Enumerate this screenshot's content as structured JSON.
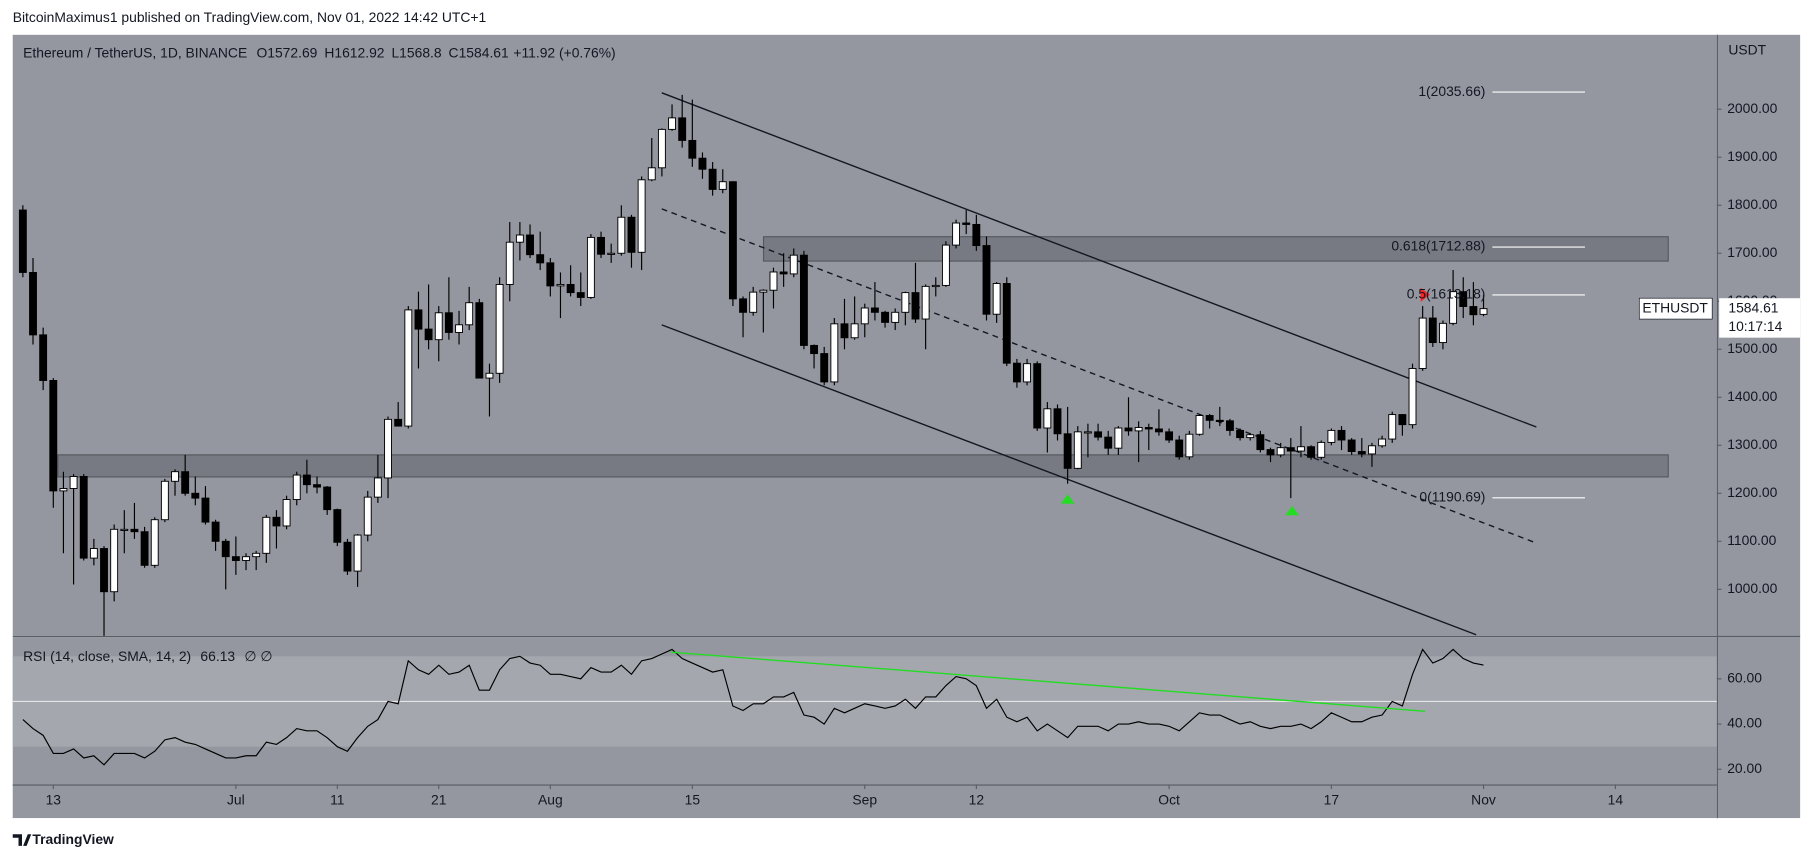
{
  "chart_data": {
    "type": "candlestick",
    "published": "BitcoinMaximus1 published on TradingView.com, Nov 01, 2022 14:42 UTC+1",
    "title": "Ethereum / TetherUS, 1D, BINANCE",
    "legend_keys": [
      "O",
      "H",
      "L",
      "C"
    ],
    "change": "+11.92 (+0.76%)",
    "y_unit": "USDT",
    "symbol": "ETHUSDT",
    "countdown": "10:17:14",
    "footer": "TradingView",
    "colors": {
      "background": "#94979f",
      "up": "#ffffff",
      "down": "#000000",
      "rsi": "#000000"
    },
    "xlim": [
      "2022-06-09",
      "2022-11-24"
    ],
    "xticks": [
      {
        "value": "2022-06-13",
        "label": "13"
      },
      {
        "value": "2022-07-01",
        "label": "Jul"
      },
      {
        "value": "2022-07-11",
        "label": "11"
      },
      {
        "value": "2022-07-21",
        "label": "21"
      },
      {
        "value": "2022-08-01",
        "label": "Aug"
      },
      {
        "value": "2022-08-15",
        "label": "15"
      },
      {
        "value": "2022-09-01",
        "label": "Sep"
      },
      {
        "value": "2022-09-12",
        "label": "12"
      },
      {
        "value": "2022-10-01",
        "label": "Oct"
      },
      {
        "value": "2022-10-17",
        "label": "17"
      },
      {
        "value": "2022-11-01",
        "label": "Nov"
      },
      {
        "value": "2022-11-14",
        "label": "14"
      }
    ],
    "ylim": [
      903,
      2155
    ],
    "yticks": [
      {
        "value": 1000,
        "label": "1000.00"
      },
      {
        "value": 1100,
        "label": "1100.00"
      },
      {
        "value": 1200,
        "label": "1200.00"
      },
      {
        "value": 1300,
        "label": "1300.00"
      },
      {
        "value": 1400,
        "label": "1400.00"
      },
      {
        "value": 1500,
        "label": "1500.00"
      },
      {
        "value": 1600,
        "label": "1600.00"
      },
      {
        "value": 1700,
        "label": "1700.00"
      },
      {
        "value": 1800,
        "label": "1800.00"
      },
      {
        "value": 1900,
        "label": "1900.00"
      },
      {
        "value": 2000,
        "label": "2000.00"
      }
    ],
    "fib": [
      {
        "label": "1(2035.66)",
        "value": 2035.66
      },
      {
        "label": "0.618(1712.88)",
        "value": 1712.88
      },
      {
        "label": "0.5(1613.18)",
        "value": 1613.18
      },
      {
        "label": "0(1190.69)",
        "value": 1190.69
      }
    ],
    "x": [
      "2022-06-10",
      "2022-06-11",
      "2022-06-12",
      "2022-06-13",
      "2022-06-14",
      "2022-06-15",
      "2022-06-16",
      "2022-06-17",
      "2022-06-18",
      "2022-06-19",
      "2022-06-20",
      "2022-06-21",
      "2022-06-22",
      "2022-06-23",
      "2022-06-24",
      "2022-06-25",
      "2022-06-26",
      "2022-06-27",
      "2022-06-28",
      "2022-06-29",
      "2022-06-30",
      "2022-07-01",
      "2022-07-02",
      "2022-07-03",
      "2022-07-04",
      "2022-07-05",
      "2022-07-06",
      "2022-07-07",
      "2022-07-08",
      "2022-07-09",
      "2022-07-10",
      "2022-07-11",
      "2022-07-12",
      "2022-07-13",
      "2022-07-14",
      "2022-07-15",
      "2022-07-16",
      "2022-07-17",
      "2022-07-18",
      "2022-07-19",
      "2022-07-20",
      "2022-07-21",
      "2022-07-22",
      "2022-07-23",
      "2022-07-24",
      "2022-07-25",
      "2022-07-26",
      "2022-07-27",
      "2022-07-28",
      "2022-07-29",
      "2022-07-30",
      "2022-07-31",
      "2022-08-01",
      "2022-08-02",
      "2022-08-03",
      "2022-08-04",
      "2022-08-05",
      "2022-08-06",
      "2022-08-07",
      "2022-08-08",
      "2022-08-09",
      "2022-08-10",
      "2022-08-11",
      "2022-08-12",
      "2022-08-13",
      "2022-08-14",
      "2022-08-15",
      "2022-08-16",
      "2022-08-17",
      "2022-08-18",
      "2022-08-19",
      "2022-08-20",
      "2022-08-21",
      "2022-08-22",
      "2022-08-23",
      "2022-08-24",
      "2022-08-25",
      "2022-08-26",
      "2022-08-27",
      "2022-08-28",
      "2022-08-29",
      "2022-08-30",
      "2022-08-31",
      "2022-09-01",
      "2022-09-02",
      "2022-09-03",
      "2022-09-04",
      "2022-09-05",
      "2022-09-06",
      "2022-09-07",
      "2022-09-08",
      "2022-09-09",
      "2022-09-10",
      "2022-09-11",
      "2022-09-12",
      "2022-09-13",
      "2022-09-14",
      "2022-09-15",
      "2022-09-16",
      "2022-09-17",
      "2022-09-18",
      "2022-09-19",
      "2022-09-20",
      "2022-09-21",
      "2022-09-22",
      "2022-09-23",
      "2022-09-24",
      "2022-09-25",
      "2022-09-26",
      "2022-09-27",
      "2022-09-28",
      "2022-09-29",
      "2022-09-30",
      "2022-10-01",
      "2022-10-02",
      "2022-10-03",
      "2022-10-04",
      "2022-10-05",
      "2022-10-06",
      "2022-10-07",
      "2022-10-08",
      "2022-10-09",
      "2022-10-10",
      "2022-10-11",
      "2022-10-12",
      "2022-10-13",
      "2022-10-14",
      "2022-10-15",
      "2022-10-16",
      "2022-10-17",
      "2022-10-18",
      "2022-10-19",
      "2022-10-20",
      "2022-10-21",
      "2022-10-22",
      "2022-10-23",
      "2022-10-24",
      "2022-10-25",
      "2022-10-26",
      "2022-10-27",
      "2022-10-28",
      "2022-10-29",
      "2022-10-30",
      "2022-10-31",
      "2022-11-01"
    ],
    "ohlc": [
      [
        1790,
        1800,
        1650,
        1660
      ],
      [
        1660,
        1690,
        1510,
        1530
      ],
      [
        1530,
        1545,
        1415,
        1435
      ],
      [
        1435,
        1440,
        1170,
        1205
      ],
      [
        1205,
        1245,
        1075,
        1210
      ],
      [
        1210,
        1240,
        1010,
        1235
      ],
      [
        1235,
        1240,
        1060,
        1065
      ],
      [
        1065,
        1105,
        1050,
        1085
      ],
      [
        1085,
        1090,
        880,
        995
      ],
      [
        995,
        1135,
        975,
        1125
      ],
      [
        1125,
        1165,
        1075,
        1125
      ],
      [
        1125,
        1180,
        1105,
        1120
      ],
      [
        1120,
        1130,
        1045,
        1050
      ],
      [
        1050,
        1150,
        1045,
        1145
      ],
      [
        1145,
        1230,
        1140,
        1225
      ],
      [
        1225,
        1250,
        1195,
        1245
      ],
      [
        1245,
        1280,
        1195,
        1200
      ],
      [
        1200,
        1235,
        1175,
        1190
      ],
      [
        1190,
        1215,
        1135,
        1140
      ],
      [
        1140,
        1145,
        1080,
        1100
      ],
      [
        1100,
        1105,
        1000,
        1068
      ],
      [
        1068,
        1110,
        1030,
        1060
      ],
      [
        1060,
        1075,
        1040,
        1068
      ],
      [
        1068,
        1080,
        1040,
        1075
      ],
      [
        1075,
        1155,
        1055,
        1150
      ],
      [
        1150,
        1165,
        1085,
        1132
      ],
      [
        1132,
        1195,
        1125,
        1187
      ],
      [
        1187,
        1245,
        1175,
        1238
      ],
      [
        1238,
        1270,
        1200,
        1218
      ],
      [
        1218,
        1235,
        1200,
        1213
      ],
      [
        1213,
        1215,
        1155,
        1166
      ],
      [
        1166,
        1168,
        1090,
        1098
      ],
      [
        1098,
        1105,
        1030,
        1038
      ],
      [
        1038,
        1115,
        1005,
        1113
      ],
      [
        1113,
        1205,
        1100,
        1192
      ],
      [
        1192,
        1280,
        1180,
        1232
      ],
      [
        1232,
        1360,
        1190,
        1354
      ],
      [
        1354,
        1390,
        1340,
        1340
      ],
      [
        1340,
        1590,
        1335,
        1582
      ],
      [
        1582,
        1620,
        1460,
        1542
      ],
      [
        1542,
        1635,
        1500,
        1520
      ],
      [
        1520,
        1590,
        1475,
        1576
      ],
      [
        1576,
        1650,
        1520,
        1535
      ],
      [
        1535,
        1580,
        1510,
        1551
      ],
      [
        1551,
        1630,
        1540,
        1597
      ],
      [
        1597,
        1605,
        1440,
        1440
      ],
      [
        1440,
        1470,
        1360,
        1450
      ],
      [
        1450,
        1650,
        1430,
        1635
      ],
      [
        1635,
        1765,
        1600,
        1723
      ],
      [
        1723,
        1765,
        1685,
        1738
      ],
      [
        1738,
        1760,
        1690,
        1697
      ],
      [
        1697,
        1745,
        1665,
        1680
      ],
      [
        1680,
        1690,
        1610,
        1632
      ],
      [
        1632,
        1660,
        1565,
        1635
      ],
      [
        1635,
        1675,
        1610,
        1618
      ],
      [
        1618,
        1660,
        1590,
        1608
      ],
      [
        1608,
        1740,
        1605,
        1733
      ],
      [
        1733,
        1745,
        1690,
        1698
      ],
      [
        1698,
        1720,
        1680,
        1700
      ],
      [
        1700,
        1800,
        1695,
        1775
      ],
      [
        1775,
        1780,
        1670,
        1702
      ],
      [
        1702,
        1860,
        1665,
        1853
      ],
      [
        1853,
        1940,
        1850,
        1878
      ],
      [
        1878,
        1960,
        1860,
        1958
      ],
      [
        1958,
        2010,
        1955,
        1982
      ],
      [
        1982,
        2030,
        1920,
        1935
      ],
      [
        1935,
        2020,
        1880,
        1898
      ],
      [
        1898,
        1910,
        1855,
        1875
      ],
      [
        1875,
        1890,
        1820,
        1833
      ],
      [
        1833,
        1875,
        1825,
        1849
      ],
      [
        1849,
        1850,
        1590,
        1605
      ],
      [
        1605,
        1610,
        1525,
        1577
      ],
      [
        1577,
        1630,
        1570,
        1619
      ],
      [
        1619,
        1625,
        1535,
        1623
      ],
      [
        1623,
        1670,
        1585,
        1661
      ],
      [
        1661,
        1700,
        1630,
        1657
      ],
      [
        1657,
        1710,
        1650,
        1696
      ],
      [
        1696,
        1705,
        1500,
        1508
      ],
      [
        1508,
        1510,
        1460,
        1491
      ],
      [
        1491,
        1505,
        1425,
        1432
      ],
      [
        1432,
        1565,
        1425,
        1553
      ],
      [
        1553,
        1605,
        1500,
        1524
      ],
      [
        1524,
        1610,
        1520,
        1553
      ],
      [
        1553,
        1595,
        1525,
        1586
      ],
      [
        1586,
        1640,
        1560,
        1577
      ],
      [
        1577,
        1580,
        1545,
        1556
      ],
      [
        1556,
        1585,
        1540,
        1577
      ],
      [
        1577,
        1620,
        1550,
        1618
      ],
      [
        1618,
        1680,
        1555,
        1563
      ],
      [
        1563,
        1635,
        1500,
        1631
      ],
      [
        1631,
        1650,
        1610,
        1633
      ],
      [
        1633,
        1725,
        1630,
        1717
      ],
      [
        1717,
        1770,
        1710,
        1763
      ],
      [
        1763,
        1790,
        1740,
        1760
      ],
      [
        1760,
        1780,
        1705,
        1716
      ],
      [
        1716,
        1735,
        1560,
        1573
      ],
      [
        1573,
        1640,
        1555,
        1637
      ],
      [
        1637,
        1650,
        1465,
        1471
      ],
      [
        1471,
        1480,
        1420,
        1432
      ],
      [
        1432,
        1480,
        1425,
        1470
      ],
      [
        1470,
        1475,
        1330,
        1336
      ],
      [
        1336,
        1390,
        1285,
        1376
      ],
      [
        1376,
        1385,
        1310,
        1324
      ],
      [
        1324,
        1380,
        1220,
        1252
      ],
      [
        1252,
        1340,
        1250,
        1328
      ],
      [
        1328,
        1345,
        1275,
        1328
      ],
      [
        1328,
        1345,
        1310,
        1317
      ],
      [
        1317,
        1330,
        1280,
        1294
      ],
      [
        1294,
        1340,
        1280,
        1336
      ],
      [
        1336,
        1400,
        1320,
        1330
      ],
      [
        1330,
        1350,
        1265,
        1337
      ],
      [
        1337,
        1345,
        1290,
        1334
      ],
      [
        1334,
        1375,
        1320,
        1328
      ],
      [
        1328,
        1335,
        1305,
        1311
      ],
      [
        1311,
        1320,
        1270,
        1276
      ],
      [
        1276,
        1330,
        1270,
        1323
      ],
      [
        1323,
        1365,
        1320,
        1362
      ],
      [
        1362,
        1365,
        1335,
        1352
      ],
      [
        1352,
        1380,
        1340,
        1351
      ],
      [
        1351,
        1355,
        1320,
        1331
      ],
      [
        1331,
        1335,
        1310,
        1316
      ],
      [
        1316,
        1325,
        1310,
        1322
      ],
      [
        1322,
        1330,
        1285,
        1291
      ],
      [
        1291,
        1295,
        1265,
        1280
      ],
      [
        1280,
        1305,
        1275,
        1295
      ],
      [
        1295,
        1315,
        1190,
        1288
      ],
      [
        1288,
        1340,
        1275,
        1297
      ],
      [
        1297,
        1300,
        1270,
        1275
      ],
      [
        1275,
        1310,
        1270,
        1306
      ],
      [
        1306,
        1335,
        1300,
        1331
      ],
      [
        1331,
        1340,
        1290,
        1311
      ],
      [
        1311,
        1315,
        1280,
        1287
      ],
      [
        1287,
        1315,
        1275,
        1282
      ],
      [
        1282,
        1305,
        1255,
        1299
      ],
      [
        1299,
        1320,
        1295,
        1313
      ],
      [
        1313,
        1370,
        1305,
        1364
      ],
      [
        1364,
        1365,
        1320,
        1343
      ],
      [
        1343,
        1470,
        1335,
        1460
      ],
      [
        1460,
        1590,
        1455,
        1565
      ],
      [
        1565,
        1590,
        1505,
        1514
      ],
      [
        1514,
        1560,
        1500,
        1554
      ],
      [
        1554,
        1665,
        1550,
        1620
      ],
      [
        1620,
        1650,
        1565,
        1589
      ],
      [
        1589,
        1640,
        1550,
        1572
      ],
      [
        1572.69,
        1612.92,
        1568.8,
        1584.61
      ]
    ],
    "rsi": {
      "title": "RSI (14, close, SMA, 14, 2)",
      "flags": "∅  ∅",
      "ylim": [
        13.3,
        78.5
      ],
      "yticks": [
        {
          "value": 20,
          "label": "20.00"
        },
        {
          "value": 40,
          "label": "40.00"
        },
        {
          "value": 60,
          "label": "60.00"
        }
      ],
      "band": [
        30,
        70
      ],
      "midline": 50,
      "values": [
        42,
        38,
        35,
        27,
        27,
        29,
        25,
        26,
        22,
        27,
        27,
        27,
        25,
        28,
        33,
        34,
        32,
        31,
        29,
        27,
        25,
        25,
        26,
        26,
        32,
        31,
        34,
        38,
        37,
        37,
        34,
        30,
        28,
        34,
        39,
        42,
        50,
        49,
        68,
        64,
        62,
        66,
        62,
        63,
        66,
        55,
        55,
        64,
        69,
        70,
        67,
        66,
        62,
        62,
        61,
        60,
        65,
        63,
        63,
        66,
        62,
        68,
        69,
        71,
        73,
        69,
        67,
        65,
        63,
        64,
        48,
        46,
        49,
        49,
        52,
        52,
        54,
        44,
        43,
        40,
        47,
        45,
        47,
        49,
        48,
        47,
        48,
        51,
        47,
        52,
        52,
        57,
        61,
        60,
        57,
        47,
        51,
        43,
        41,
        43,
        37,
        40,
        37,
        34,
        39,
        39,
        39,
        37,
        40,
        40,
        41,
        40,
        40,
        39,
        37,
        41,
        45,
        44,
        44,
        42,
        40,
        41,
        39,
        38,
        39,
        39,
        40,
        38,
        41,
        45,
        43,
        41,
        41,
        43,
        44,
        50,
        48,
        62,
        73,
        67,
        69,
        73,
        69,
        67,
        66.13
      ]
    }
  }
}
